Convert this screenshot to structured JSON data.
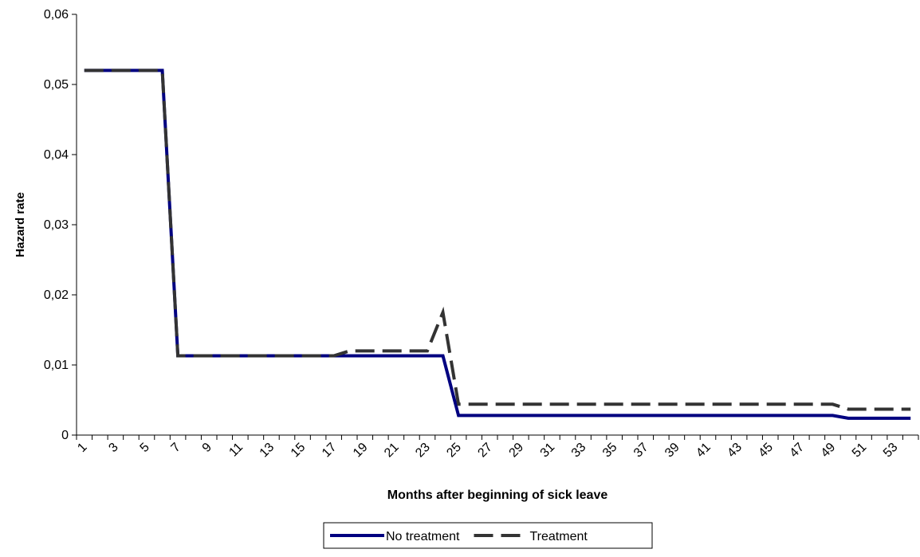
{
  "chart_data": {
    "type": "line",
    "x_label": "Months after beginning of sick leave",
    "y_label": "Hazard rate",
    "categories": [
      "1",
      null,
      "3",
      null,
      "5",
      null,
      "7",
      null,
      "9",
      null,
      "11",
      null,
      "13",
      null,
      "15",
      null,
      "17",
      null,
      "19",
      null,
      "21",
      null,
      "23",
      null,
      "25",
      null,
      "27",
      null,
      "29",
      null,
      "31",
      null,
      "33",
      null,
      "35",
      null,
      "37",
      null,
      "39",
      null,
      "41",
      null,
      "43",
      null,
      "45",
      null,
      "47",
      null,
      "49",
      null,
      "51",
      null,
      "53",
      null
    ],
    "series": [
      {
        "name": "No treatment",
        "color": "#000080",
        "dash": false,
        "values": [
          0.052,
          0.052,
          0.052,
          0.052,
          0.052,
          0.052,
          0.0113,
          0.0113,
          0.0113,
          0.0113,
          0.0113,
          0.0113,
          0.0113,
          0.0113,
          0.0113,
          0.0113,
          0.0113,
          0.0113,
          0.0113,
          0.0113,
          0.0113,
          0.0113,
          0.0113,
          0.0113,
          0.0028,
          0.0028,
          0.0028,
          0.0028,
          0.0028,
          0.0028,
          0.0028,
          0.0028,
          0.0028,
          0.0028,
          0.0028,
          0.0028,
          0.0028,
          0.0028,
          0.0028,
          0.0028,
          0.0028,
          0.0028,
          0.0028,
          0.0028,
          0.0028,
          0.0028,
          0.0028,
          0.0028,
          0.0028,
          0.0024,
          0.0024,
          0.0024,
          0.0024,
          0.0024
        ]
      },
      {
        "name": "Treatment",
        "color": "#333333",
        "dash": true,
        "values": [
          0.052,
          0.052,
          0.052,
          0.052,
          0.052,
          0.052,
          0.0113,
          0.0113,
          0.0113,
          0.0113,
          0.0113,
          0.0113,
          0.0113,
          0.0113,
          0.0113,
          0.0113,
          0.0113,
          0.012,
          0.012,
          0.012,
          0.012,
          0.012,
          0.012,
          0.0175,
          0.0044,
          0.0044,
          0.0044,
          0.0044,
          0.0044,
          0.0044,
          0.0044,
          0.0044,
          0.0044,
          0.0044,
          0.0044,
          0.0044,
          0.0044,
          0.0044,
          0.0044,
          0.0044,
          0.0044,
          0.0044,
          0.0044,
          0.0044,
          0.0044,
          0.0044,
          0.0044,
          0.0044,
          0.0044,
          0.0037,
          0.0037,
          0.0037,
          0.0037,
          0.0037
        ]
      }
    ],
    "ylim": [
      0,
      0.06
    ],
    "yticks": [
      0,
      {
        "value": 0.01,
        "label": "0,01"
      },
      {
        "value": 0.02,
        "label": "0,02"
      },
      {
        "value": 0.03,
        "label": "0,03"
      },
      {
        "value": 0.04,
        "label": "0,04"
      },
      {
        "value": 0.05,
        "label": "0,05"
      },
      {
        "value": 0.06,
        "label": "0,06"
      }
    ],
    "grid": false,
    "legend": "bottom"
  }
}
